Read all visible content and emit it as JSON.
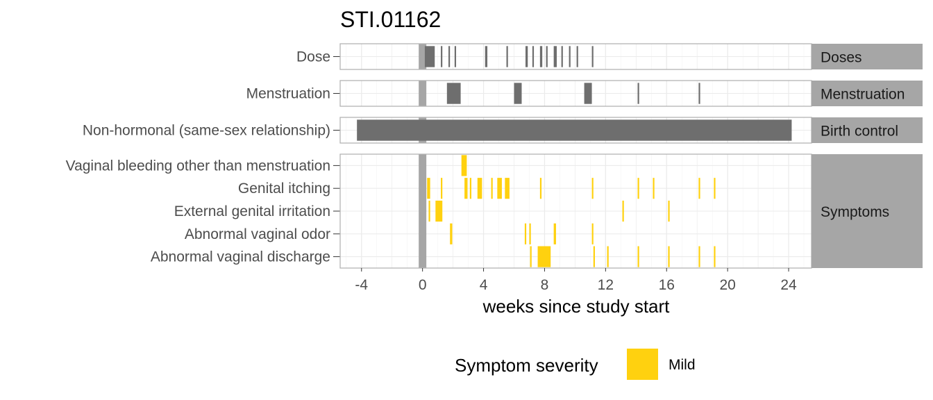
{
  "chart_data": {
    "type": "timeline",
    "title": "STI.01162",
    "xlabel": "weeks since study start",
    "xlim": [
      -5.4,
      25.5
    ],
    "xticks": [
      -4,
      0,
      4,
      8,
      12,
      16,
      20,
      24
    ],
    "grid": true,
    "study_start_band": [
      -0.25,
      0.25
    ],
    "panels": [
      {
        "strip": "Doses",
        "rows": [
          "Dose"
        ],
        "color": "#6e6e6e",
        "events": [
          {
            "row": "Dose",
            "start": 0.15,
            "end": 0.8
          },
          {
            "row": "Dose",
            "start": 1.2,
            "end": 1.3
          },
          {
            "row": "Dose",
            "start": 1.7,
            "end": 1.8
          },
          {
            "row": "Dose",
            "start": 2.1,
            "end": 2.2
          },
          {
            "row": "Dose",
            "start": 4.1,
            "end": 4.25
          },
          {
            "row": "Dose",
            "start": 5.5,
            "end": 5.6
          },
          {
            "row": "Dose",
            "start": 6.75,
            "end": 6.9
          },
          {
            "row": "Dose",
            "start": 7.2,
            "end": 7.3
          },
          {
            "row": "Dose",
            "start": 7.7,
            "end": 7.85
          },
          {
            "row": "Dose",
            "start": 8.1,
            "end": 8.2
          },
          {
            "row": "Dose",
            "start": 8.6,
            "end": 8.8
          },
          {
            "row": "Dose",
            "start": 9.1,
            "end": 9.2
          },
          {
            "row": "Dose",
            "start": 9.6,
            "end": 9.7
          },
          {
            "row": "Dose",
            "start": 10.1,
            "end": 10.2
          },
          {
            "row": "Dose",
            "start": 11.1,
            "end": 11.2
          }
        ]
      },
      {
        "strip": "Menstruation",
        "rows": [
          "Menstruation"
        ],
        "color": "#6e6e6e",
        "events": [
          {
            "row": "Menstruation",
            "start": 1.6,
            "end": 2.5
          },
          {
            "row": "Menstruation",
            "start": 6.0,
            "end": 6.5
          },
          {
            "row": "Menstruation",
            "start": 10.6,
            "end": 11.1
          },
          {
            "row": "Menstruation",
            "start": 14.1,
            "end": 14.2
          },
          {
            "row": "Menstruation",
            "start": 18.1,
            "end": 18.2
          }
        ]
      },
      {
        "strip": "Birth control",
        "rows": [
          "Non-hormonal (same-sex relationship)"
        ],
        "color": "#6e6e6e",
        "events": [
          {
            "row": "Non-hormonal (same-sex relationship)",
            "start": -4.3,
            "end": 24.2
          }
        ]
      },
      {
        "strip": "Symptoms",
        "rows": [
          "Vaginal bleeding other than menstruation",
          "Genital itching",
          "External genital irritation",
          "Abnormal vaginal odor",
          "Abnormal vaginal discharge"
        ],
        "color": "#FFD10F",
        "events": [
          {
            "row": "Vaginal bleeding other than menstruation",
            "start": 2.55,
            "end": 2.9
          },
          {
            "row": "Genital itching",
            "start": 0.3,
            "end": 0.5
          },
          {
            "row": "Genital itching",
            "start": 1.2,
            "end": 1.3
          },
          {
            "row": "Genital itching",
            "start": 2.75,
            "end": 2.95
          },
          {
            "row": "Genital itching",
            "start": 3.1,
            "end": 3.2
          },
          {
            "row": "Genital itching",
            "start": 3.6,
            "end": 3.9
          },
          {
            "row": "Genital itching",
            "start": 4.5,
            "end": 4.6
          },
          {
            "row": "Genital itching",
            "start": 4.9,
            "end": 5.2
          },
          {
            "row": "Genital itching",
            "start": 5.4,
            "end": 5.7
          },
          {
            "row": "Genital itching",
            "start": 7.7,
            "end": 7.8
          },
          {
            "row": "Genital itching",
            "start": 11.1,
            "end": 11.2
          },
          {
            "row": "Genital itching",
            "start": 14.1,
            "end": 14.2
          },
          {
            "row": "Genital itching",
            "start": 15.1,
            "end": 15.2
          },
          {
            "row": "Genital itching",
            "start": 18.1,
            "end": 18.2
          },
          {
            "row": "Genital itching",
            "start": 19.1,
            "end": 19.2
          },
          {
            "row": "External genital irritation",
            "start": 0.4,
            "end": 0.5
          },
          {
            "row": "External genital irritation",
            "start": 0.85,
            "end": 1.3
          },
          {
            "row": "External genital irritation",
            "start": 13.1,
            "end": 13.2
          },
          {
            "row": "External genital irritation",
            "start": 16.1,
            "end": 16.2
          },
          {
            "row": "Abnormal vaginal odor",
            "start": 1.8,
            "end": 1.95
          },
          {
            "row": "Abnormal vaginal odor",
            "start": 6.7,
            "end": 6.8
          },
          {
            "row": "Abnormal vaginal odor",
            "start": 7.0,
            "end": 7.1
          },
          {
            "row": "Abnormal vaginal odor",
            "start": 8.6,
            "end": 8.75
          },
          {
            "row": "Abnormal vaginal odor",
            "start": 11.1,
            "end": 11.2
          },
          {
            "row": "Abnormal vaginal discharge",
            "start": 7.05,
            "end": 7.15
          },
          {
            "row": "Abnormal vaginal discharge",
            "start": 7.55,
            "end": 8.4
          },
          {
            "row": "Abnormal vaginal discharge",
            "start": 11.2,
            "end": 11.3
          },
          {
            "row": "Abnormal vaginal discharge",
            "start": 12.1,
            "end": 12.2
          },
          {
            "row": "Abnormal vaginal discharge",
            "start": 14.1,
            "end": 14.2
          },
          {
            "row": "Abnormal vaginal discharge",
            "start": 16.1,
            "end": 16.2
          },
          {
            "row": "Abnormal vaginal discharge",
            "start": 18.1,
            "end": 18.2
          },
          {
            "row": "Abnormal vaginal discharge",
            "start": 19.1,
            "end": 19.2
          }
        ]
      }
    ],
    "legend": {
      "title": "Symptom severity",
      "placement": "bottom",
      "items": [
        {
          "label": "Mild",
          "color": "#FFD10F"
        }
      ]
    }
  }
}
